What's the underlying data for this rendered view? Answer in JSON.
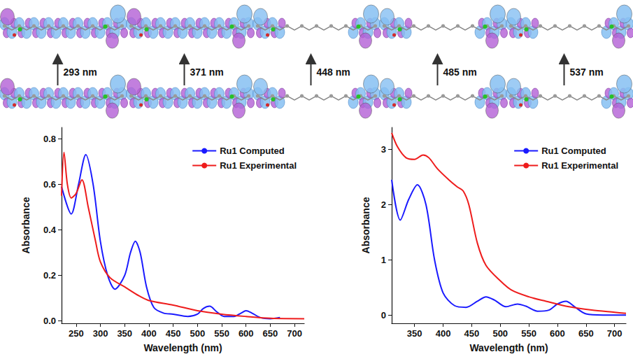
{
  "header": {
    "transition_labels": [
      "293 nm",
      "371 nm",
      "448 nm",
      "485 nm",
      "537 nm"
    ]
  },
  "chart_data": [
    {
      "type": "line",
      "x_label": "Wavelength (nm)",
      "y_label": "Absorbance",
      "xlim": [
        220,
        720
      ],
      "xticks": [
        250,
        300,
        350,
        400,
        450,
        500,
        550,
        600,
        650,
        700
      ],
      "ylim": [
        -0.01,
        0.85
      ],
      "yticks": [
        {
          "value": 0,
          "label": "0.0"
        },
        0.2,
        0.4,
        0.6,
        0.8
      ],
      "grid": false,
      "legend": "upper right",
      "series": [
        {
          "name": "Ru1 Computed",
          "color": "#1a1aff",
          "x": [
            220,
            240,
            255,
            270,
            285,
            300,
            315,
            330,
            350,
            362,
            372,
            382,
            395,
            410,
            430,
            450,
            480,
            500,
            512,
            525,
            540,
            555,
            575,
            590,
            600,
            612,
            630,
            650,
            670
          ],
          "values": [
            0.59,
            0.47,
            0.6,
            0.73,
            0.6,
            0.35,
            0.2,
            0.14,
            0.2,
            0.3,
            0.35,
            0.3,
            0.15,
            0.06,
            0.035,
            0.03,
            0.02,
            0.03,
            0.055,
            0.065,
            0.04,
            0.02,
            0.02,
            0.035,
            0.045,
            0.035,
            0.015,
            0.01,
            0.015
          ]
        },
        {
          "name": "Ru1 Experimental",
          "color": "#ee1c1c",
          "x": [
            220,
            225,
            232,
            240,
            250,
            262,
            275,
            290,
            300,
            320,
            350,
            380,
            400,
            450,
            500,
            550,
            600,
            650,
            720
          ],
          "values": [
            0.55,
            0.74,
            0.6,
            0.54,
            0.56,
            0.62,
            0.5,
            0.35,
            0.26,
            0.19,
            0.15,
            0.11,
            0.09,
            0.07,
            0.045,
            0.03,
            0.02,
            0.012,
            0.01
          ]
        }
      ]
    },
    {
      "type": "line",
      "x_label": "Wavelength (nm)",
      "y_label": "Absorbance",
      "xlim": [
        310,
        720
      ],
      "xticks": [
        350,
        400,
        450,
        500,
        550,
        600,
        650,
        700
      ],
      "ylim": [
        -0.15,
        3.4
      ],
      "yticks": [
        0,
        1,
        2,
        3
      ],
      "grid": false,
      "legend": "upper right",
      "series": [
        {
          "name": "Ru1 Computed",
          "color": "#1a1aff",
          "x": [
            310,
            325,
            340,
            355,
            370,
            385,
            400,
            420,
            440,
            460,
            475,
            490,
            510,
            530,
            545,
            565,
            585,
            600,
            615,
            630,
            650,
            680,
            720
          ],
          "values": [
            2.45,
            1.72,
            2.1,
            2.36,
            2.0,
            1.0,
            0.4,
            0.17,
            0.14,
            0.25,
            0.33,
            0.27,
            0.15,
            0.2,
            0.16,
            0.07,
            0.09,
            0.2,
            0.25,
            0.15,
            0.02,
            0.0,
            0.0
          ]
        },
        {
          "name": "Ru1 Experimental",
          "color": "#ee1c1c",
          "x": [
            310,
            320,
            335,
            350,
            365,
            375,
            390,
            410,
            425,
            435,
            445,
            460,
            475,
            500,
            520,
            550,
            580,
            620,
            660,
            700,
            720
          ],
          "values": [
            3.3,
            3.05,
            2.85,
            2.82,
            2.9,
            2.85,
            2.65,
            2.45,
            2.32,
            2.25,
            2.0,
            1.3,
            0.9,
            0.62,
            0.45,
            0.33,
            0.25,
            0.15,
            0.09,
            0.05,
            0.03
          ]
        }
      ]
    }
  ]
}
